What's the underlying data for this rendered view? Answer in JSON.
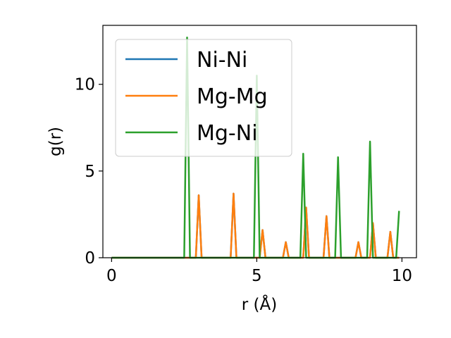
{
  "chart_data": {
    "type": "line",
    "xlabel": "r (Å)",
    "ylabel": "g(r)",
    "xlim": [
      -0.3,
      10.5
    ],
    "ylim": [
      0,
      13.4
    ],
    "xticks": [
      0,
      5,
      10
    ],
    "yticks": [
      0,
      5,
      10
    ],
    "grid": false,
    "legend_position": "top-left",
    "series": [
      {
        "name": "Ni-Ni",
        "color": "#1f77b4",
        "x": [
          0,
          2.9,
          3.0,
          3.1,
          4.1,
          4.2,
          4.3,
          5.1,
          5.2,
          5.3,
          5.9,
          6.0,
          6.1,
          6.6,
          6.7,
          6.8,
          7.3,
          7.4,
          7.5,
          8.4,
          8.5,
          8.6,
          8.9,
          9.0,
          9.1,
          9.5,
          9.6,
          9.7,
          9.9
        ],
        "y": [
          0,
          0,
          3.6,
          0,
          0,
          3.7,
          0,
          0,
          1.6,
          0,
          0,
          0.9,
          0,
          0,
          2.9,
          0,
          0,
          2.4,
          0,
          0,
          0.9,
          0,
          0,
          2.0,
          0,
          0,
          1.5,
          0,
          0
        ]
      },
      {
        "name": "Mg-Mg",
        "color": "#ff7f0e",
        "x": [
          0,
          2.9,
          3.0,
          3.1,
          4.1,
          4.2,
          4.3,
          5.1,
          5.2,
          5.3,
          5.9,
          6.0,
          6.1,
          6.6,
          6.7,
          6.8,
          7.3,
          7.4,
          7.5,
          8.4,
          8.5,
          8.6,
          8.9,
          9.0,
          9.1,
          9.5,
          9.6,
          9.7,
          9.9
        ],
        "y": [
          0,
          0,
          3.6,
          0,
          0,
          3.7,
          0,
          0,
          1.6,
          0,
          0,
          0.9,
          0,
          0,
          2.9,
          0,
          0,
          2.4,
          0,
          0,
          0.9,
          0,
          0,
          2.0,
          0,
          0,
          1.5,
          0,
          0
        ]
      },
      {
        "name": "Mg-Ni",
        "color": "#2ca02c",
        "x": [
          0,
          2.5,
          2.6,
          2.7,
          4.9,
          5.0,
          5.1,
          6.5,
          6.6,
          6.7,
          7.7,
          7.8,
          7.9,
          8.8,
          8.9,
          9.0,
          9.8,
          9.9
        ],
        "y": [
          0,
          0,
          12.7,
          0,
          0,
          10.5,
          0,
          0,
          6.0,
          0,
          0,
          5.8,
          0,
          0,
          6.7,
          0,
          0,
          2.7
        ]
      }
    ]
  }
}
